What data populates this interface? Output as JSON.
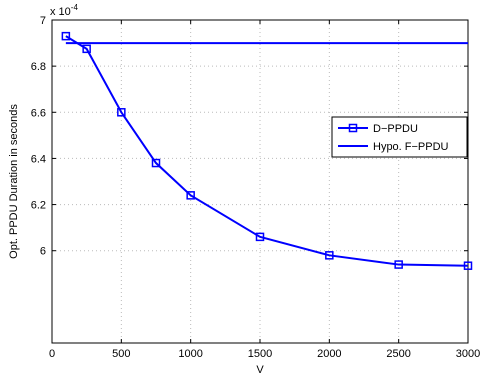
{
  "chart_data": {
    "type": "line",
    "xlabel": "V",
    "ylabel": "Opt. PPDU Duration in seconds",
    "exponent_base": "x 10",
    "exponent_power": "-4",
    "xlim": [
      0,
      3000
    ],
    "ylim": [
      5.6,
      7.0
    ],
    "grid": true,
    "legend_position": "right",
    "x_ticks": [
      "0",
      "500",
      "1000",
      "1500",
      "2000",
      "2500",
      "3000"
    ],
    "y_ticks": [
      "6",
      "6.2",
      "6.4",
      "6.6",
      "6.8",
      "7"
    ],
    "x_tick_values": [
      0,
      500,
      1000,
      1500,
      2000,
      2500,
      3000
    ],
    "y_tick_values": [
      6.0,
      6.2,
      6.4,
      6.6,
      6.8,
      7.0
    ],
    "series": [
      {
        "name": "D−PPDU",
        "color": "#0000ff",
        "marker": "square",
        "x": [
          100,
          250,
          500,
          750,
          1000,
          1500,
          2000,
          2500,
          3000
        ],
        "y": [
          6.93,
          6.875,
          6.6,
          6.38,
          6.24,
          6.06,
          5.98,
          5.94,
          5.935
        ]
      },
      {
        "name": "Hypo. F−PPDU",
        "color": "#0000ff",
        "marker": "none",
        "x": [
          100,
          3000
        ],
        "y": [
          6.9,
          6.9
        ]
      }
    ]
  }
}
